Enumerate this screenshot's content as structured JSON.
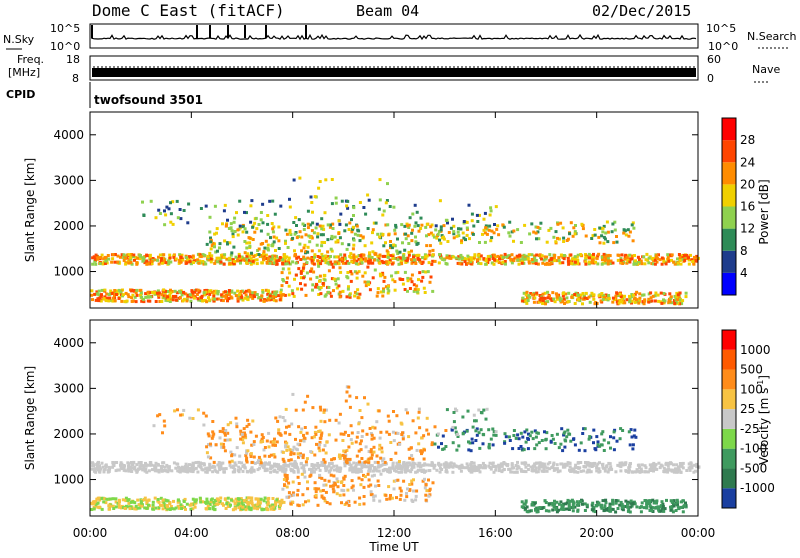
{
  "header": {
    "station": "Dome C East (fitACF)",
    "beam": "Beam 04",
    "date": "02/Dec/2015"
  },
  "status_panels": {
    "sky": {
      "left_label": "N.Sky",
      "right_label": "N.Search",
      "ticks_left": [
        "10^5",
        "10^0"
      ],
      "ticks_right": [
        "10^5",
        "10^0"
      ]
    },
    "freq": {
      "left_label_line1": "Freq.",
      "left_label_line2": "[MHz]",
      "ticks_left": [
        "18",
        "8"
      ],
      "right_label": "Nave",
      "ticks_right": [
        "60",
        "0"
      ]
    },
    "cpid": {
      "left_label": "CPID",
      "program": "twofsound 3501"
    }
  },
  "chart_data": [
    {
      "type": "heatmap",
      "name": "power",
      "ylabel": "Slant Range [km]",
      "xlim": [
        0,
        24
      ],
      "ylim": [
        200,
        4500
      ],
      "y_ticks": [
        "1000",
        "2000",
        "3000",
        "4000"
      ],
      "colorbar": {
        "label": "Power [dB]",
        "ticks": [
          "4",
          "8",
          "12",
          "16",
          "20",
          "24",
          "28"
        ],
        "colors": [
          "#0000ff",
          "#1e3c8c",
          "#2e8b57",
          "#8fd14f",
          "#f0d000",
          "#ff8c00",
          "#ff4500",
          "#ff0000"
        ]
      }
    },
    {
      "type": "heatmap",
      "name": "velocity",
      "ylabel": "Slant Range [km]",
      "xlabel": "Time UT",
      "xlim": [
        0,
        24
      ],
      "ylim": [
        200,
        4500
      ],
      "y_ticks": [
        "1000",
        "2000",
        "3000",
        "4000"
      ],
      "x_ticks": [
        "00:00",
        "04:00",
        "08:00",
        "12:00",
        "16:00",
        "20:00",
        "00:00"
      ],
      "colorbar": {
        "label": "Velocity [m s",
        "label_sup": "-1",
        "label_end": "]",
        "ticks": [
          "1000",
          "500",
          "100",
          "25",
          "-25",
          "-100",
          "-500",
          "-1000"
        ],
        "colors": [
          "#1a3fa0",
          "#2f7a4f",
          "#3f9a5f",
          "#7dd84a",
          "#c8c8c8",
          "#f7c343",
          "#ff8c1a",
          "#ff5a00",
          "#ff0000"
        ]
      }
    }
  ]
}
